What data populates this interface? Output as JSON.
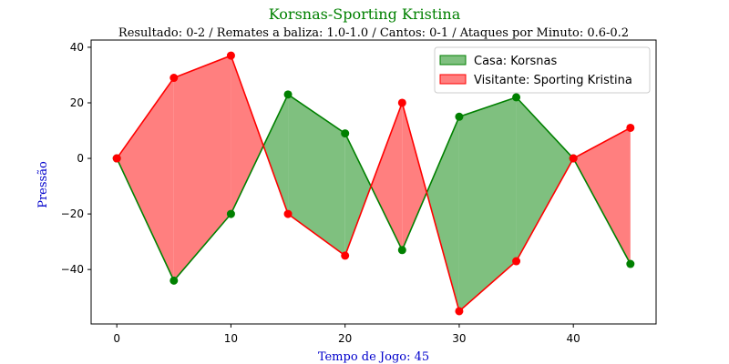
{
  "chart_data": {
    "type": "line",
    "title": "Korsnas-Sporting Kristina",
    "subtitle": "Resultado: 0-2 / Remates a baliza: 1.0-1.0 / Cantos: 0-1 / Ataques por Minuto: 0.6-0.2",
    "xlabel": "Tempo de Jogo: 45",
    "ylabel": "Pressão",
    "x": [
      0,
      5,
      10,
      15,
      20,
      25,
      30,
      35,
      40,
      45
    ],
    "xlim": [
      -2.25,
      47.25
    ],
    "ylim": [
      -59.6,
      42.6
    ],
    "xticks": [
      0,
      10,
      20,
      30,
      40
    ],
    "yticks": [
      -40,
      -20,
      0,
      20,
      40
    ],
    "xtick_labels": [
      "0",
      "10",
      "20",
      "30",
      "40"
    ],
    "ytick_labels": [
      "−40",
      "−20",
      "0",
      "20",
      "40"
    ],
    "series": [
      {
        "name": "Casa: Korsnas",
        "color": "#008000",
        "fill": "#7fc07f",
        "values": [
          0,
          -44,
          -20,
          23,
          9,
          -33,
          15,
          22,
          0,
          -38
        ]
      },
      {
        "name": "Visitante: Sporting Kristina",
        "color": "#ff0000",
        "fill": "#ff7f7f",
        "values": [
          0,
          29,
          37,
          -20,
          -35,
          20,
          -55,
          -37,
          0,
          11
        ]
      }
    ],
    "legend_position": "top-right",
    "grid": false
  }
}
